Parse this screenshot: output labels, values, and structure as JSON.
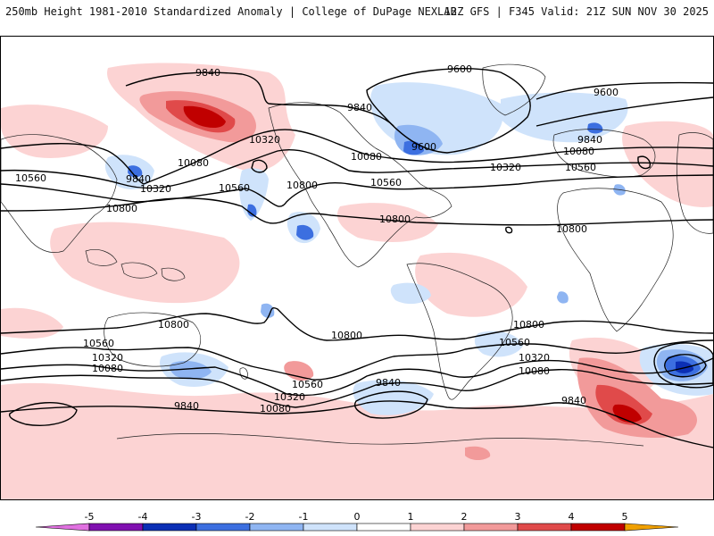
{
  "header": {
    "title": "250mb Height 1981-2010 Standardized Anomaly | College of DuPage NEXLAB",
    "run_info": "12Z GFS | F345 Valid: 21Z SUN NOV 30 2025"
  },
  "map": {
    "variable": "250mb geopotential height",
    "contour_labels": {
      "c9600": "9600",
      "c9840": "9840",
      "c10080": "10080",
      "c10320": "10320",
      "c10560": "10560",
      "c10800": "10800"
    },
    "colors": {
      "pos1": "#fcd3d3",
      "pos2": "#f29a9a",
      "pos3": "#e04a4a",
      "pos4": "#c00000",
      "neg1": "#cfe3fb",
      "neg2": "#8fb5f2",
      "neg3": "#3c6fe0",
      "neg4": "#0b2fb5",
      "land_outline": "#222222",
      "contour": "#000000"
    }
  },
  "colorbar": {
    "ticks": [
      "-5",
      "-4",
      "-3",
      "-2",
      "-1",
      "0",
      "1",
      "2",
      "3",
      "4",
      "5"
    ],
    "bins": [
      {
        "value": -5.5,
        "color": "#e070e0"
      },
      {
        "value": -4.5,
        "color": "#8010b0"
      },
      {
        "value": -3.5,
        "color": "#0b2fb5"
      },
      {
        "value": -2.5,
        "color": "#3c6fe0"
      },
      {
        "value": -1.5,
        "color": "#8fb5f2"
      },
      {
        "value": -0.5,
        "color": "#cfe3fb"
      },
      {
        "value": 0.5,
        "color": "#ffffff"
      },
      {
        "value": 1.5,
        "color": "#fcd3d3"
      },
      {
        "value": 2.5,
        "color": "#f29a9a"
      },
      {
        "value": 3.5,
        "color": "#e04a4a"
      },
      {
        "value": 4.5,
        "color": "#c00000"
      },
      {
        "value": 5.5,
        "color": "#f0a000"
      }
    ]
  }
}
